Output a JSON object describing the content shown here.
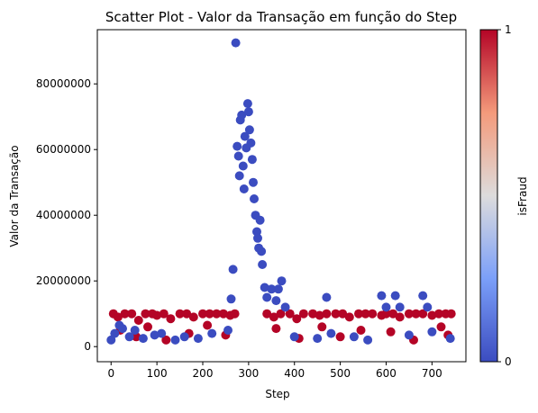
{
  "chart_data": {
    "type": "scatter",
    "title": "Scatter Plot - Valor da Transação em função do Step",
    "xlabel": "Step",
    "ylabel": "Valor da Transação",
    "xlim": [
      -30,
      774
    ],
    "ylim": [
      -4600000,
      96500000
    ],
    "xticks": [
      0,
      100,
      200,
      300,
      400,
      500,
      600,
      700
    ],
    "yticks": [
      0,
      20000000,
      40000000,
      60000000,
      80000000
    ],
    "ytick_labels": [
      "0",
      "20000000",
      "40000000",
      "60000000",
      "80000000"
    ],
    "grid": false,
    "colorbar": {
      "label": "isFraud",
      "ticks": [
        0,
        1
      ],
      "colormap": "coolwarm",
      "low_color": "#3b4cc0",
      "high_color": "#b40426"
    },
    "colors": {
      "not_fraud": "#3b4cc0",
      "fraud": "#b40426"
    },
    "series": [
      {
        "isFraud": 1,
        "points": [
          [
            5,
            10000000
          ],
          [
            15,
            9000000
          ],
          [
            30,
            10000000
          ],
          [
            45,
            10000000
          ],
          [
            60,
            8000000
          ],
          [
            75,
            10000000
          ],
          [
            90,
            10000000
          ],
          [
            100,
            9500000
          ],
          [
            115,
            10000000
          ],
          [
            130,
            8500000
          ],
          [
            150,
            10000000
          ],
          [
            165,
            10000000
          ],
          [
            180,
            9000000
          ],
          [
            200,
            10000000
          ],
          [
            215,
            10000000
          ],
          [
            230,
            10000000
          ],
          [
            245,
            10000000
          ],
          [
            260,
            9500000
          ],
          [
            270,
            10000000
          ],
          [
            340,
            10000000
          ],
          [
            355,
            9000000
          ],
          [
            370,
            10000000
          ],
          [
            390,
            10000000
          ],
          [
            405,
            8500000
          ],
          [
            420,
            10000000
          ],
          [
            440,
            10000000
          ],
          [
            455,
            9500000
          ],
          [
            470,
            10000000
          ],
          [
            490,
            10000000
          ],
          [
            505,
            10000000
          ],
          [
            520,
            9000000
          ],
          [
            540,
            10000000
          ],
          [
            555,
            10000000
          ],
          [
            570,
            10000000
          ],
          [
            590,
            9500000
          ],
          [
            600,
            10000000
          ],
          [
            615,
            10000000
          ],
          [
            630,
            9000000
          ],
          [
            650,
            10000000
          ],
          [
            665,
            10000000
          ],
          [
            680,
            10000000
          ],
          [
            700,
            9500000
          ],
          [
            715,
            10000000
          ],
          [
            730,
            10000000
          ],
          [
            742,
            10000000
          ],
          [
            20,
            5000000
          ],
          [
            55,
            3000000
          ],
          [
            80,
            6000000
          ],
          [
            120,
            2000000
          ],
          [
            170,
            4000000
          ],
          [
            210,
            6500000
          ],
          [
            250,
            3500000
          ],
          [
            360,
            5500000
          ],
          [
            410,
            2500000
          ],
          [
            460,
            6000000
          ],
          [
            500,
            3000000
          ],
          [
            545,
            5000000
          ],
          [
            610,
            4500000
          ],
          [
            660,
            2000000
          ],
          [
            720,
            6000000
          ],
          [
            735,
            3500000
          ]
        ]
      },
      {
        "isFraud": 0,
        "points": [
          [
            0,
            2000000
          ],
          [
            8,
            4000000
          ],
          [
            18,
            6500000
          ],
          [
            25,
            5500000
          ],
          [
            40,
            3000000
          ],
          [
            52,
            5000000
          ],
          [
            70,
            2500000
          ],
          [
            95,
            3500000
          ],
          [
            110,
            4000000
          ],
          [
            140,
            2000000
          ],
          [
            160,
            3000000
          ],
          [
            190,
            2500000
          ],
          [
            220,
            4000000
          ],
          [
            255,
            5000000
          ],
          [
            262,
            14500000
          ],
          [
            266,
            23500000
          ],
          [
            272,
            92500000
          ],
          [
            275,
            61000000
          ],
          [
            278,
            58000000
          ],
          [
            280,
            52000000
          ],
          [
            282,
            69000000
          ],
          [
            285,
            70500000
          ],
          [
            288,
            55000000
          ],
          [
            290,
            48000000
          ],
          [
            292,
            64000000
          ],
          [
            295,
            60500000
          ],
          [
            298,
            74000000
          ],
          [
            300,
            71500000
          ],
          [
            302,
            66000000
          ],
          [
            305,
            62000000
          ],
          [
            308,
            57000000
          ],
          [
            310,
            50000000
          ],
          [
            312,
            45000000
          ],
          [
            315,
            40000000
          ],
          [
            318,
            35000000
          ],
          [
            320,
            33000000
          ],
          [
            322,
            30000000
          ],
          [
            325,
            38500000
          ],
          [
            328,
            29000000
          ],
          [
            330,
            25000000
          ],
          [
            335,
            18000000
          ],
          [
            340,
            15000000
          ],
          [
            350,
            17500000
          ],
          [
            360,
            14000000
          ],
          [
            365,
            17500000
          ],
          [
            372,
            20000000
          ],
          [
            380,
            12000000
          ],
          [
            470,
            15000000
          ],
          [
            590,
            15500000
          ],
          [
            600,
            12000000
          ],
          [
            620,
            15500000
          ],
          [
            630,
            12000000
          ],
          [
            680,
            15500000
          ],
          [
            690,
            12000000
          ],
          [
            400,
            3000000
          ],
          [
            450,
            2500000
          ],
          [
            480,
            4000000
          ],
          [
            530,
            3000000
          ],
          [
            560,
            2000000
          ],
          [
            650,
            3500000
          ],
          [
            700,
            4500000
          ],
          [
            740,
            2500000
          ]
        ]
      }
    ]
  }
}
